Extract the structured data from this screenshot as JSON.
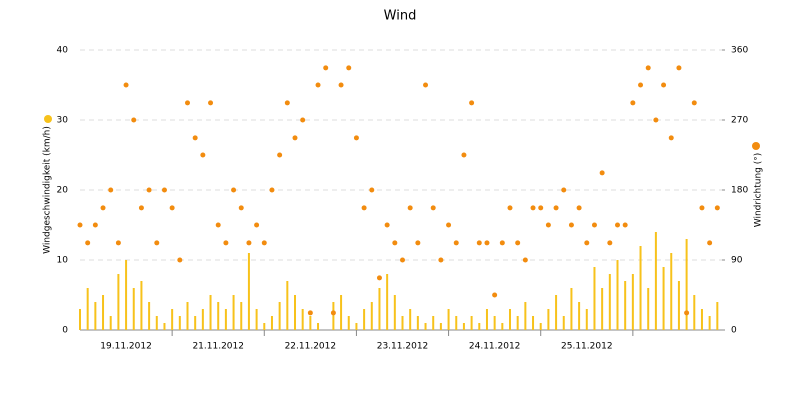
{
  "chart_data": {
    "type": "bar_scatter",
    "title": "Wind",
    "y_label": "Windgeschwindigkeit (km/h)",
    "y2_label": "Windrichtung (°)",
    "categories": [
      "19.11.2012",
      "21.11.2012",
      "22.11.2012",
      "23.11.2012",
      "24.11.2012",
      "25.11.2012",
      null
    ],
    "xlim": [
      0,
      168
    ],
    "xticks": [
      24,
      48,
      72,
      96,
      120,
      144
    ],
    "ylim": [
      0,
      40
    ],
    "yticks": [
      0,
      10,
      20,
      30,
      40
    ],
    "y2lim": [
      0,
      360
    ],
    "y2ticks": [
      0,
      90,
      180,
      270,
      360
    ],
    "grid": true,
    "x": [
      0,
      2,
      4,
      6,
      8,
      10,
      12,
      14,
      16,
      18,
      20,
      22,
      24,
      26,
      28,
      30,
      32,
      34,
      36,
      38,
      40,
      42,
      44,
      46,
      48,
      50,
      52,
      54,
      56,
      58,
      60,
      62,
      64,
      66,
      68,
      70,
      72,
      74,
      76,
      78,
      80,
      82,
      84,
      86,
      88,
      90,
      92,
      94,
      96,
      98,
      100,
      102,
      104,
      106,
      108,
      110,
      112,
      114,
      116,
      118,
      120,
      122,
      124,
      126,
      128,
      130,
      132,
      134,
      136,
      138,
      140,
      142,
      144,
      146,
      148,
      150,
      152,
      154,
      156,
      158,
      160,
      162,
      164,
      166
    ],
    "series": [
      {
        "kind": "bar",
        "color": "#f7c21b",
        "values": [
          3,
          6,
          4,
          5,
          2,
          8,
          10,
          6,
          7,
          4,
          2,
          1,
          3,
          2,
          4,
          2,
          3,
          5,
          4,
          3,
          5,
          4,
          11,
          3,
          1,
          2,
          4,
          7,
          5,
          3,
          2,
          1,
          0,
          4,
          5,
          2,
          1,
          3,
          4,
          6,
          8,
          5,
          2,
          3,
          2,
          1,
          2,
          1,
          3,
          2,
          1,
          2,
          1,
          3,
          2,
          1,
          3,
          2,
          4,
          2,
          1,
          3,
          5,
          2,
          6,
          4,
          3,
          9,
          6,
          8,
          10,
          7,
          8,
          12,
          6,
          14,
          9,
          11,
          7,
          13,
          5,
          3,
          2,
          4
        ]
      },
      {
        "kind": "dot",
        "axis": "y2",
        "color": "#f28c0f",
        "values": [
          135,
          112,
          135,
          157,
          180,
          112,
          315,
          270,
          157,
          180,
          112,
          180,
          157,
          90,
          292,
          247,
          225,
          292,
          135,
          112,
          180,
          157,
          112,
          135,
          112,
          180,
          225,
          292,
          247,
          270,
          22,
          315,
          337,
          22,
          315,
          337,
          247,
          157,
          180,
          67,
          135,
          112,
          90,
          157,
          112,
          315,
          157,
          90,
          135,
          112,
          225,
          292,
          112,
          112,
          45,
          112,
          157,
          112,
          90,
          157,
          157,
          135,
          157,
          180,
          135,
          157,
          112,
          135,
          202,
          112,
          135,
          135,
          292,
          315,
          337,
          270,
          315,
          247,
          337,
          22,
          292,
          157,
          112,
          157
        ]
      }
    ]
  }
}
